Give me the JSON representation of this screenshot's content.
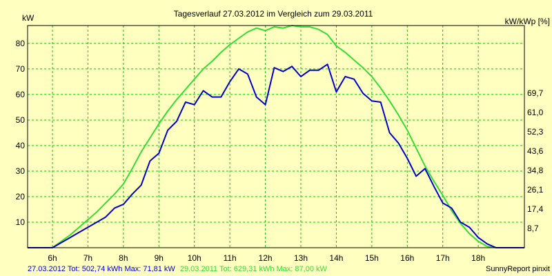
{
  "chart_data": {
    "type": "line",
    "title": "Tagesverlauf 27.03.2012 im Vergleich zum 29.03.2011",
    "ylabel_left": "kW",
    "ylabel_right": "kW/kWp [%]",
    "xlim": [
      5.3,
      19.3
    ],
    "ylim": [
      0,
      87
    ],
    "x_ticks": [
      6,
      7,
      8,
      9,
      10,
      11,
      12,
      13,
      14,
      15,
      16,
      17,
      18
    ],
    "x_tick_labels": [
      "6h",
      "7h",
      "8h",
      "9h",
      "10h",
      "11h",
      "12h",
      "13h",
      "14h",
      "15h",
      "16h",
      "17h",
      "18h"
    ],
    "y_ticks_left": [
      10,
      20,
      30,
      40,
      50,
      60,
      70,
      80
    ],
    "y_ticks_right": [
      {
        "value": 8.7,
        "label": "8,7"
      },
      {
        "value": 17.4,
        "label": "17,4"
      },
      {
        "value": 26.1,
        "label": "26,1"
      },
      {
        "value": 34.8,
        "label": "34,8"
      },
      {
        "value": 43.5,
        "label": "43,6"
      },
      {
        "value": 52.2,
        "label": "52,3"
      },
      {
        "value": 60.9,
        "label": "61,0"
      },
      {
        "value": 69.6,
        "label": "69,7"
      }
    ],
    "grid": true,
    "legend_position": "bottom-left",
    "series": [
      {
        "name": "27.03.2012 Tot: 502,74 kWh Max: 71,81 kW",
        "color": "#0000CC",
        "x": [
          5.3,
          6.0,
          6.25,
          6.5,
          6.75,
          7.0,
          7.25,
          7.5,
          7.75,
          8.0,
          8.25,
          8.5,
          8.75,
          9.0,
          9.25,
          9.5,
          9.75,
          10.0,
          10.25,
          10.5,
          10.75,
          11.0,
          11.25,
          11.5,
          11.75,
          12.0,
          12.25,
          12.5,
          12.75,
          13.0,
          13.25,
          13.5,
          13.75,
          14.0,
          14.25,
          14.5,
          14.75,
          15.0,
          15.25,
          15.5,
          15.75,
          16.0,
          16.25,
          16.5,
          16.75,
          17.0,
          17.25,
          17.5,
          17.75,
          18.0,
          18.25,
          18.5,
          19.3
        ],
        "y": [
          0,
          0,
          2,
          4,
          6,
          8,
          10,
          12,
          15.5,
          17,
          21,
          24.5,
          34,
          37,
          46,
          49.5,
          57,
          56,
          61.5,
          59,
          59,
          65,
          70,
          68,
          59,
          56,
          70.5,
          69,
          71,
          67,
          69.5,
          69.5,
          71.81,
          61,
          67,
          66,
          60.5,
          57.5,
          57,
          45,
          41,
          35,
          28,
          31,
          24,
          17.5,
          15.5,
          10,
          8,
          4,
          1.5,
          0,
          0
        ]
      },
      {
        "name": "29.03.2011 Tot: 629,31 kWh Max: 87,00 kW",
        "color": "#33DD33",
        "x": [
          5.3,
          6.0,
          6.25,
          6.5,
          6.75,
          7.0,
          7.25,
          7.5,
          7.75,
          8.0,
          8.25,
          8.5,
          8.75,
          9.0,
          9.25,
          9.5,
          9.75,
          10.0,
          10.25,
          10.5,
          10.75,
          11.0,
          11.25,
          11.5,
          11.75,
          12.0,
          12.25,
          12.5,
          12.75,
          13.0,
          13.25,
          13.5,
          13.75,
          14.0,
          14.25,
          14.5,
          14.75,
          15.0,
          15.25,
          15.5,
          15.75,
          16.0,
          16.25,
          16.5,
          16.75,
          17.0,
          17.25,
          17.5,
          17.75,
          18.0,
          18.25,
          18.5,
          19.3
        ],
        "y": [
          0,
          0,
          2.5,
          5,
          8,
          11,
          14,
          17.5,
          21,
          25,
          31,
          37.5,
          43,
          48.5,
          53.5,
          58,
          62,
          66,
          70,
          73,
          76.5,
          79.5,
          82,
          84.5,
          86,
          85,
          86.5,
          86,
          87,
          86.5,
          86.5,
          85.5,
          83.5,
          79,
          76.5,
          73.5,
          70.5,
          67,
          62.5,
          57.5,
          52,
          46,
          39,
          32,
          26,
          20.5,
          14.5,
          9.5,
          5.5,
          2.5,
          0.5,
          0,
          0
        ]
      }
    ]
  },
  "footer": {
    "brand": "SunnyReport pinxit"
  }
}
